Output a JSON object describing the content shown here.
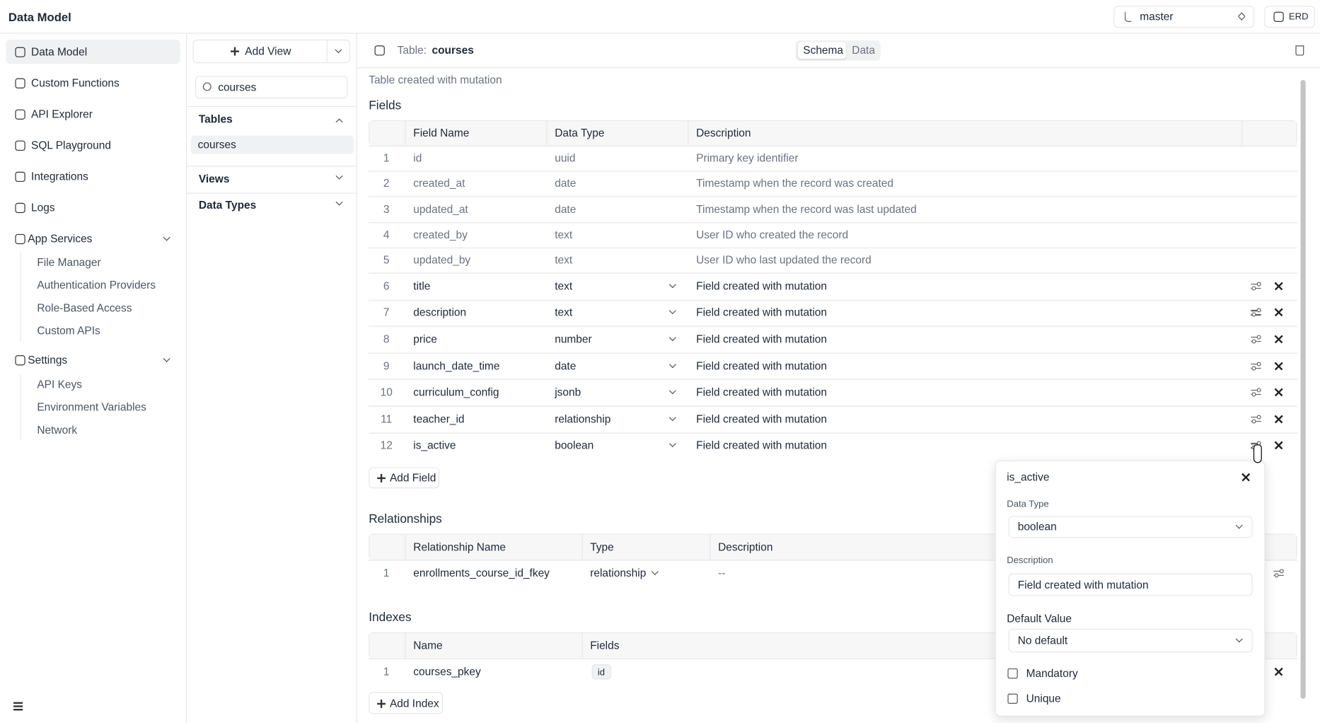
{
  "header": {
    "title": "Data Model",
    "branch": "master",
    "erd": "ERD"
  },
  "nav": {
    "items": [
      "Data Model",
      "Custom Functions",
      "API Explorer",
      "SQL Playground",
      "Integrations",
      "Logs"
    ],
    "app_services": {
      "label": "App Services",
      "items": [
        "File Manager",
        "Authentication Providers",
        "Role-Based Access",
        "Custom APIs"
      ]
    },
    "settings": {
      "label": "Settings",
      "items": [
        "API Keys",
        "Environment Variables",
        "Network"
      ]
    }
  },
  "views_panel": {
    "add_view": "Add View",
    "search": "courses",
    "tables_label": "Tables",
    "tables": [
      "courses"
    ],
    "views_label": "Views",
    "data_types_label": "Data Types"
  },
  "table": {
    "label": "Table:",
    "name": "courses",
    "tabs": [
      "Schema",
      "Data"
    ],
    "description": "Table created with mutation"
  },
  "fields": {
    "title": "Fields",
    "columns": [
      "Field Name",
      "Data Type",
      "Description"
    ],
    "rows": [
      [
        1,
        "id",
        "uuid",
        "Primary key identifier"
      ],
      [
        2,
        "created_at",
        "date",
        "Timestamp when the record was created"
      ],
      [
        3,
        "updated_at",
        "date",
        "Timestamp when the record was last updated"
      ],
      [
        4,
        "created_by",
        "text",
        "User ID who created the record"
      ],
      [
        5,
        "updated_by",
        "text",
        "User ID who last updated the record"
      ],
      [
        6,
        "title",
        "text",
        "Field created with mutation"
      ],
      [
        7,
        "description",
        "text",
        "Field created with mutation"
      ],
      [
        8,
        "price",
        "number",
        "Field created with mutation"
      ],
      [
        9,
        "launch_date_time",
        "date",
        "Field created with mutation"
      ],
      [
        10,
        "curriculum_config",
        "jsonb",
        "Field created with mutation"
      ],
      [
        11,
        "teacher_id",
        "relationship",
        "Field created with mutation"
      ],
      [
        12,
        "is_active",
        "boolean",
        "Field created with mutation"
      ]
    ],
    "add": "Add Field"
  },
  "relationships": {
    "title": "Relationships",
    "columns": [
      "Relationship Name",
      "Type",
      "Description"
    ],
    "rows": [
      [
        1,
        "enrollments_course_id_fkey",
        "relationship",
        "--"
      ]
    ]
  },
  "indexes": {
    "title": "Indexes",
    "columns": [
      "Name",
      "Fields"
    ],
    "rows": [
      [
        1,
        "courses_pkey",
        "id"
      ]
    ],
    "add": "Add Index"
  },
  "popover": {
    "title": "is_active",
    "data_type_label": "Data Type",
    "data_type": "boolean",
    "description_label": "Description",
    "description": "Field created with mutation",
    "default_label": "Default Value",
    "default": "No default",
    "mandatory": "Mandatory",
    "unique": "Unique"
  }
}
